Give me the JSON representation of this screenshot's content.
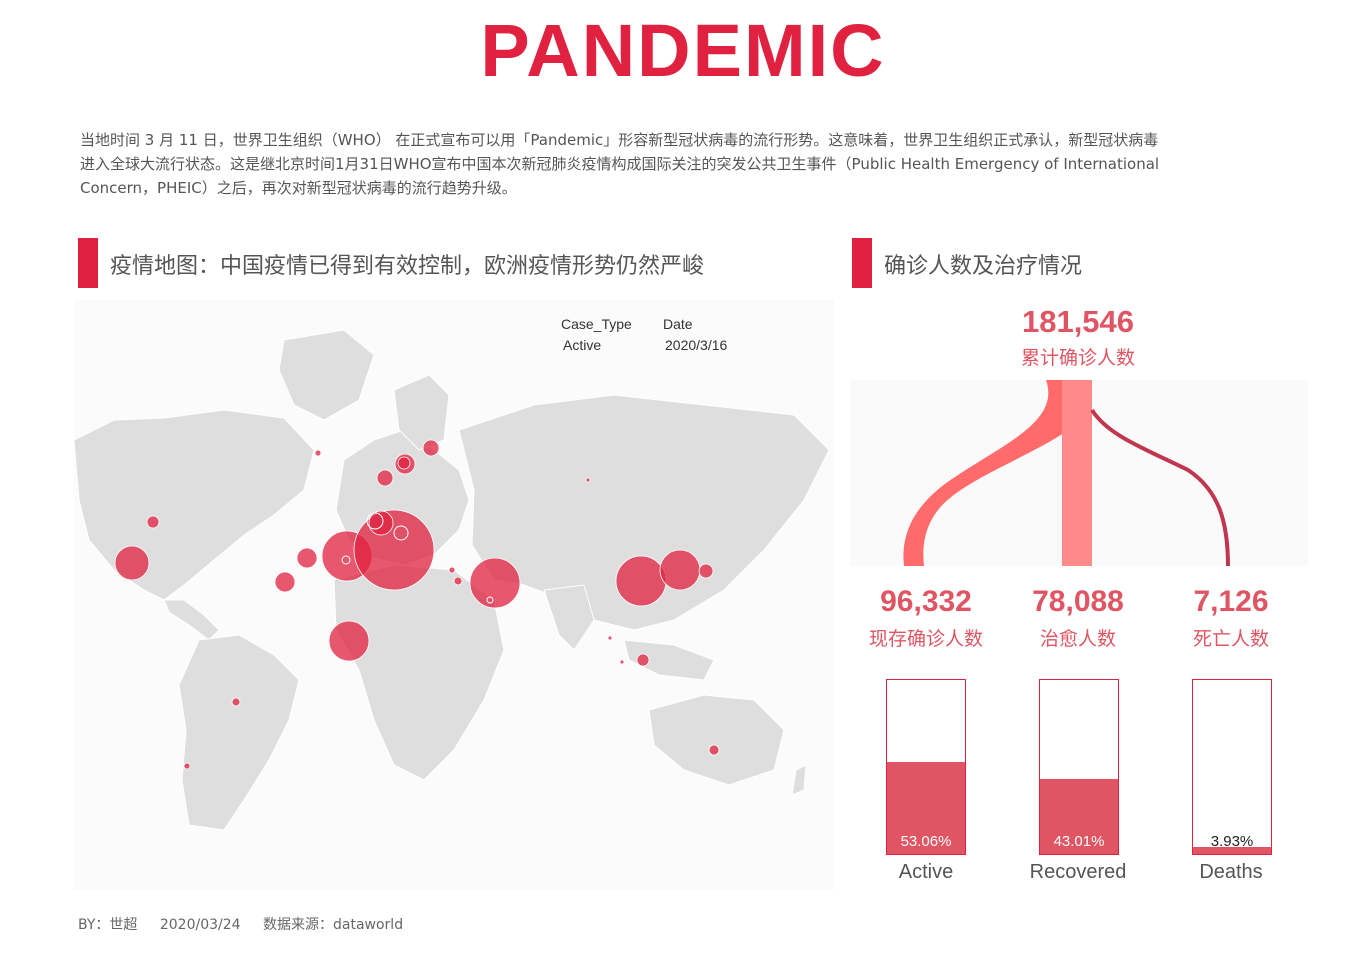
{
  "header": {
    "title": "PANDEMIC",
    "intro_lines": [
      "当地时间 3 月 11 日，世界卫生组织（WHO） 在正式宣布可以用「Pandemic」形容新型冠状病毒的流行形势。这意味着，世界卫生组织正式承认，新型冠状病毒",
      "进入全球大流行状态。这是继北京时间1月31日WHO宣布中国本次新冠肺炎疫情构成国际关注的突发公共卫生事件（Public Health Emergency of International",
      "Concern，PHEIC）之后，再次对新型冠状病毒的流行趋势升级。"
    ]
  },
  "map_section": {
    "heading": "疫情地图：中国疫情已得到有效控制，欧洲疫情形势仍然严峻",
    "filter": {
      "case_type_label": "Case_Type",
      "case_type_value": "Active",
      "date_label": "Date",
      "date_value": "2020/3/16"
    }
  },
  "stats_section": {
    "heading": "确诊人数及治疗情况",
    "total_value": "181,546",
    "total_label": "累计确诊人数",
    "items": [
      {
        "value": "96,332",
        "label": "现存确诊人数",
        "pct_text": "53.06%",
        "name": "Active"
      },
      {
        "value": "78,088",
        "label": "治愈人数",
        "pct_text": "43.01%",
        "name": "Recovered"
      },
      {
        "value": "7,126",
        "label": "死亡人数",
        "pct_text": "3.93%",
        "name": "Deaths"
      }
    ]
  },
  "chart_data": {
    "type": "bar",
    "categories": [
      "Active",
      "Recovered",
      "Deaths"
    ],
    "values": [
      53.06,
      43.01,
      3.93
    ],
    "counts": [
      96332,
      78088,
      7126
    ],
    "total": 181546,
    "ylim": [
      0,
      100
    ],
    "colors": {
      "accent": "#e0213f",
      "fill": "#e05563",
      "flow_light": "#ff8a8a",
      "flow_dark": "#c0364e"
    }
  },
  "footer": {
    "by": "BY：世超",
    "date": "2020/03/24",
    "source": "数据来源：dataworld"
  }
}
